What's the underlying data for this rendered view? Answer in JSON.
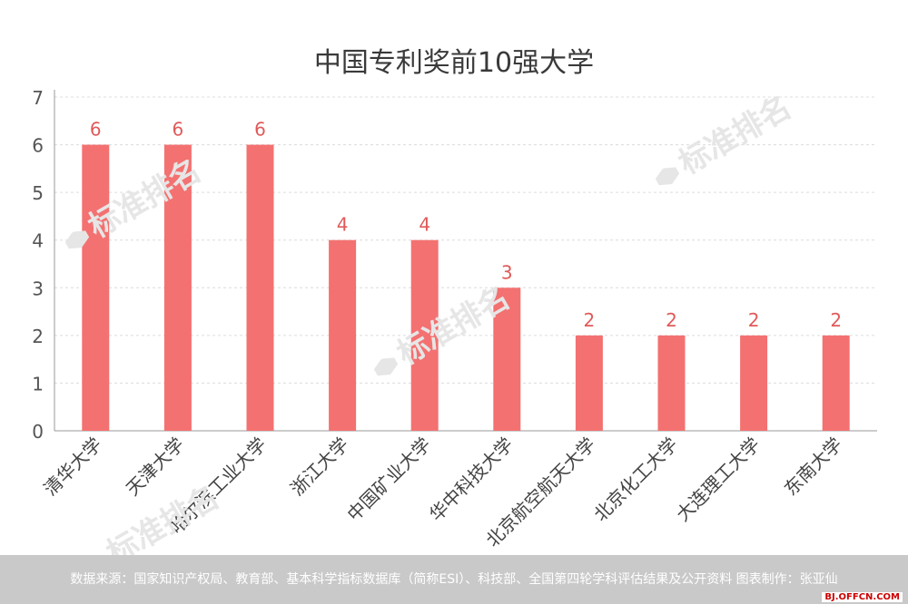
{
  "chart_data": {
    "type": "bar",
    "title": "中国专利奖前10强大学",
    "categories": [
      "清华大学",
      "天津大学",
      "哈尔滨工业大学",
      "浙江大学",
      "中国矿业大学",
      "华中科技大学",
      "北京航空航天大学",
      "北京化工大学",
      "大连理工大学",
      "东南大学"
    ],
    "values": [
      6,
      6,
      6,
      4,
      4,
      3,
      2,
      2,
      2,
      2
    ],
    "ylim": [
      0,
      7
    ],
    "yticks": [
      0,
      1,
      2,
      3,
      4,
      5,
      6,
      7
    ],
    "grid": true,
    "bar_color": "#f47171",
    "label_color": "#e05a5a"
  },
  "footer": {
    "source": "数据来源：国家知识产权局、教育部、基本科学指标数据库（简称ESI）、科技部、全国第四轮学科评估结果及公开资料  图表制作：张亚仙"
  },
  "watermark": "标准排名",
  "site_badge": "BJ.OFFCN.COM"
}
